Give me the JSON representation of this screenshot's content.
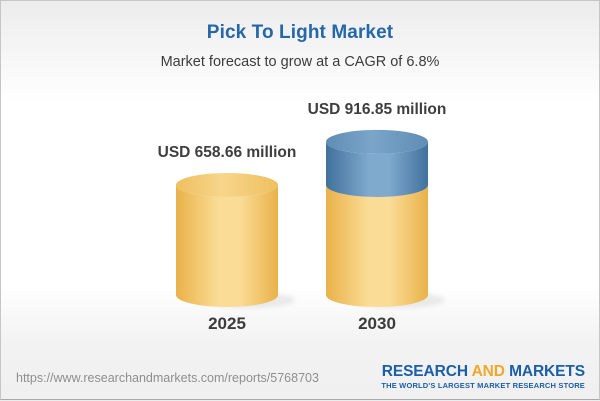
{
  "chart_data": {
    "type": "bar",
    "bar_style": "3d-cylinder",
    "title": "Pick To Light Market",
    "subtitle": "Market forecast to grow at a CAGR of 6.8%",
    "categories": [
      "2025",
      "2030"
    ],
    "values": [
      658.66,
      916.85
    ],
    "value_labels": [
      "USD 658.66 million",
      "USD 916.85 million"
    ],
    "unit": "USD million",
    "cagr_percent": 6.8,
    "ylim": [
      0,
      1000
    ],
    "axes_visible": false,
    "grid": false,
    "legend": "none",
    "series_note": "second bar shows 2025 base in gold plus growth increment in blue"
  },
  "colors": {
    "title_blue": "#2568a9",
    "text_dark": "#3c3c3c",
    "gold_body_edge": "#E9B24A",
    "gold_body_mid": "#FBDC96",
    "gold_top_edge": "#EEC05F",
    "gold_top_mid": "#F7D58B",
    "blue_body_edge": "#41719C",
    "blue_body_mid": "#7FA9CD",
    "blue_top_edge": "#5F8DB4",
    "blue_top_mid": "#7BA5C9",
    "shadow": "#000000",
    "logo_blue": "#1b5ea9",
    "logo_gold": "#f0a82a",
    "url_gray": "#8f8f8f"
  },
  "footer": {
    "url": "https://www.researchandmarkets.com/reports/5768703",
    "logo": {
      "research": "RESEARCH",
      "and": "AND",
      "markets": "MARKETS",
      "tagline": "THE WORLD'S LARGEST MARKET RESEARCH STORE"
    }
  }
}
